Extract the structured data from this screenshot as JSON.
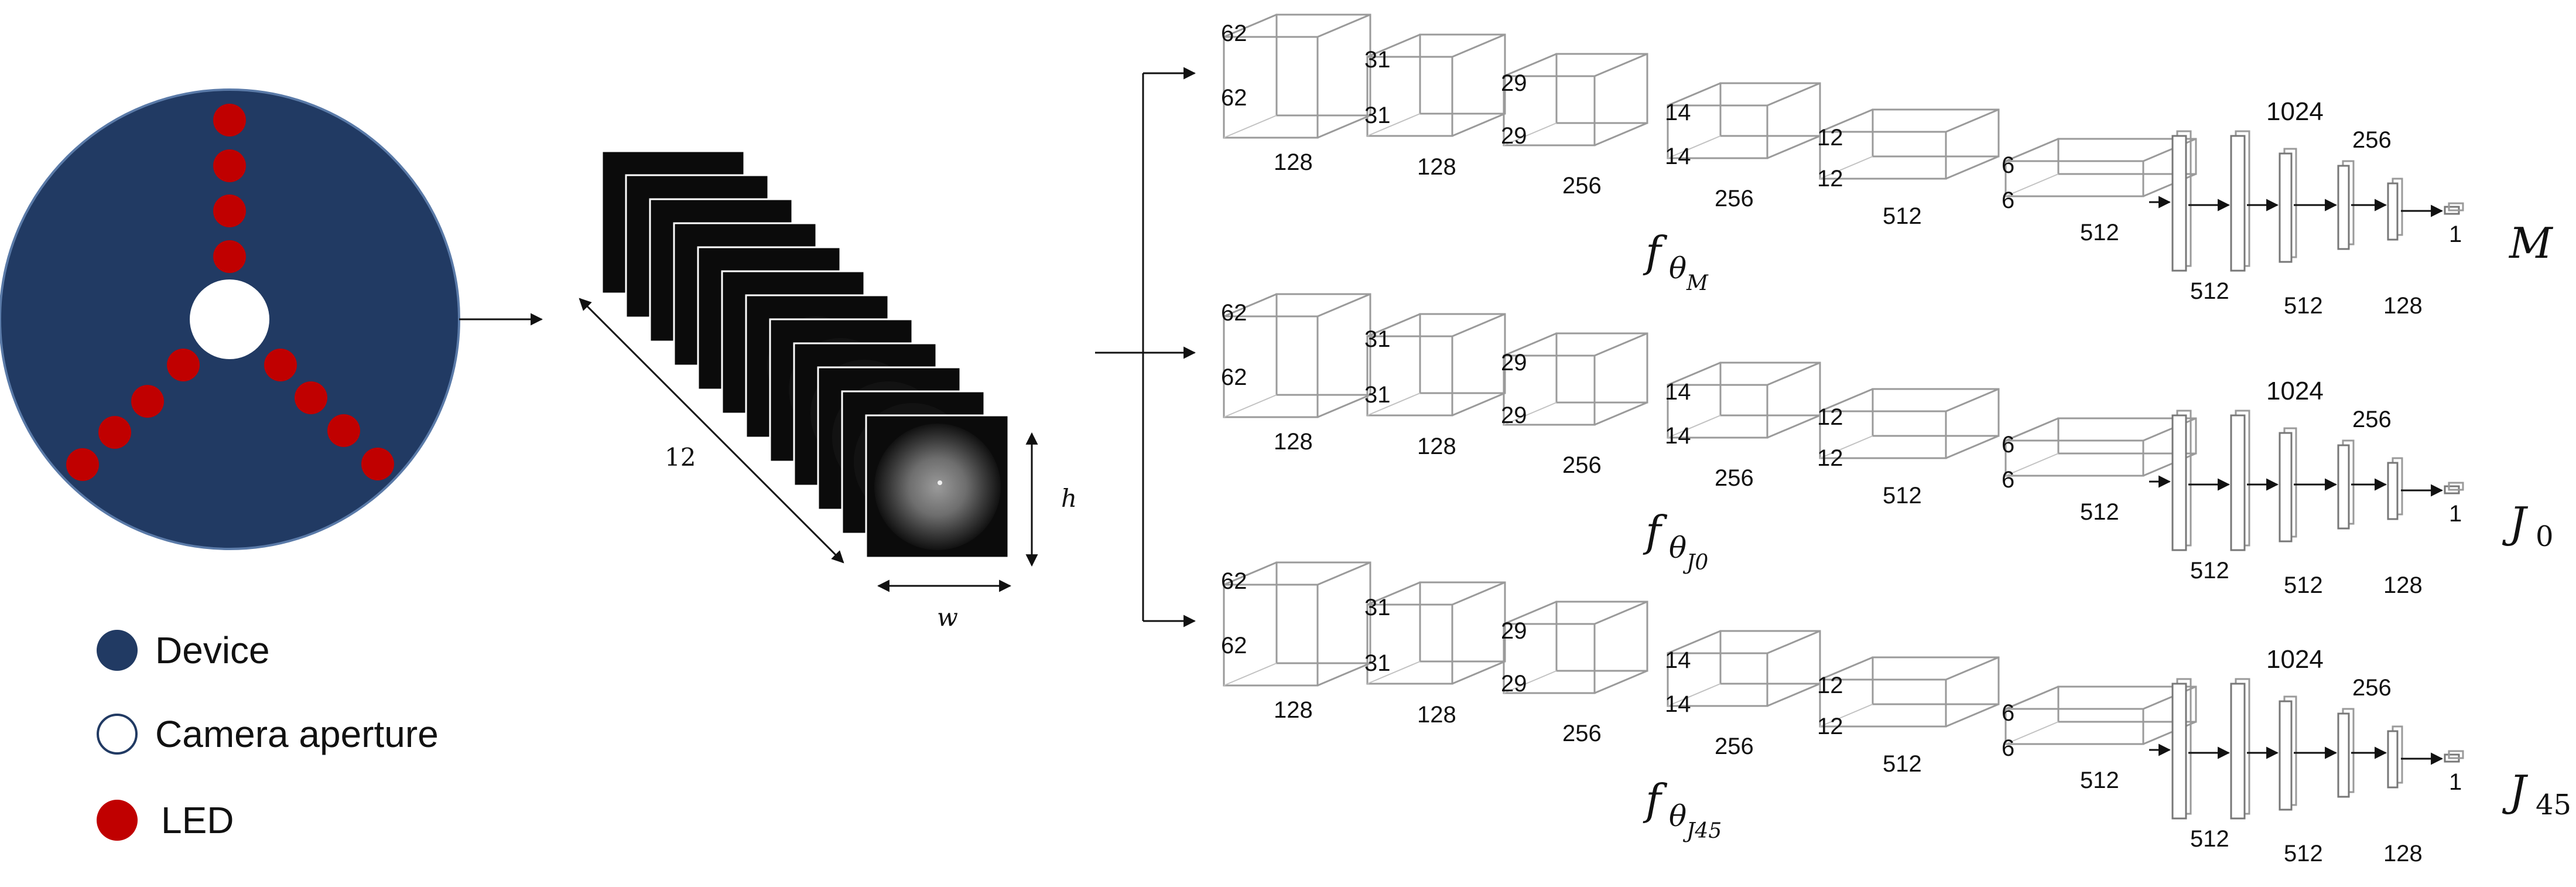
{
  "legend": {
    "device": "Device",
    "aperture": "Camera aperture",
    "led": "LED"
  },
  "colors": {
    "device": "#213a63",
    "led": "#c00000",
    "aperture": "#ffffff"
  },
  "stack": {
    "count_label": "12",
    "h_label": "h",
    "w_label": "w"
  },
  "network": {
    "conv_dims": [
      {
        "side": "62",
        "depth": "128"
      },
      {
        "side": "31",
        "depth": "128"
      },
      {
        "side": "29",
        "depth": "256"
      },
      {
        "side": "14",
        "depth": "256"
      },
      {
        "side": "12",
        "depth": "512"
      },
      {
        "side": "6",
        "depth": "512"
      }
    ],
    "fc_top": [
      "1024",
      "256"
    ],
    "fc_bottom": [
      "512",
      "512",
      "128"
    ],
    "output_size": "1"
  },
  "branches": [
    {
      "f_label": "f",
      "sub_label": "θ",
      "subsub": "M",
      "out_main": "M",
      "out_sub": ""
    },
    {
      "f_label": "f",
      "sub_label": "θ",
      "subsub": "J0",
      "out_main": "J",
      "out_sub": "0"
    },
    {
      "f_label": "f",
      "sub_label": "θ",
      "subsub": "J45",
      "out_main": "J",
      "out_sub": "45"
    }
  ]
}
